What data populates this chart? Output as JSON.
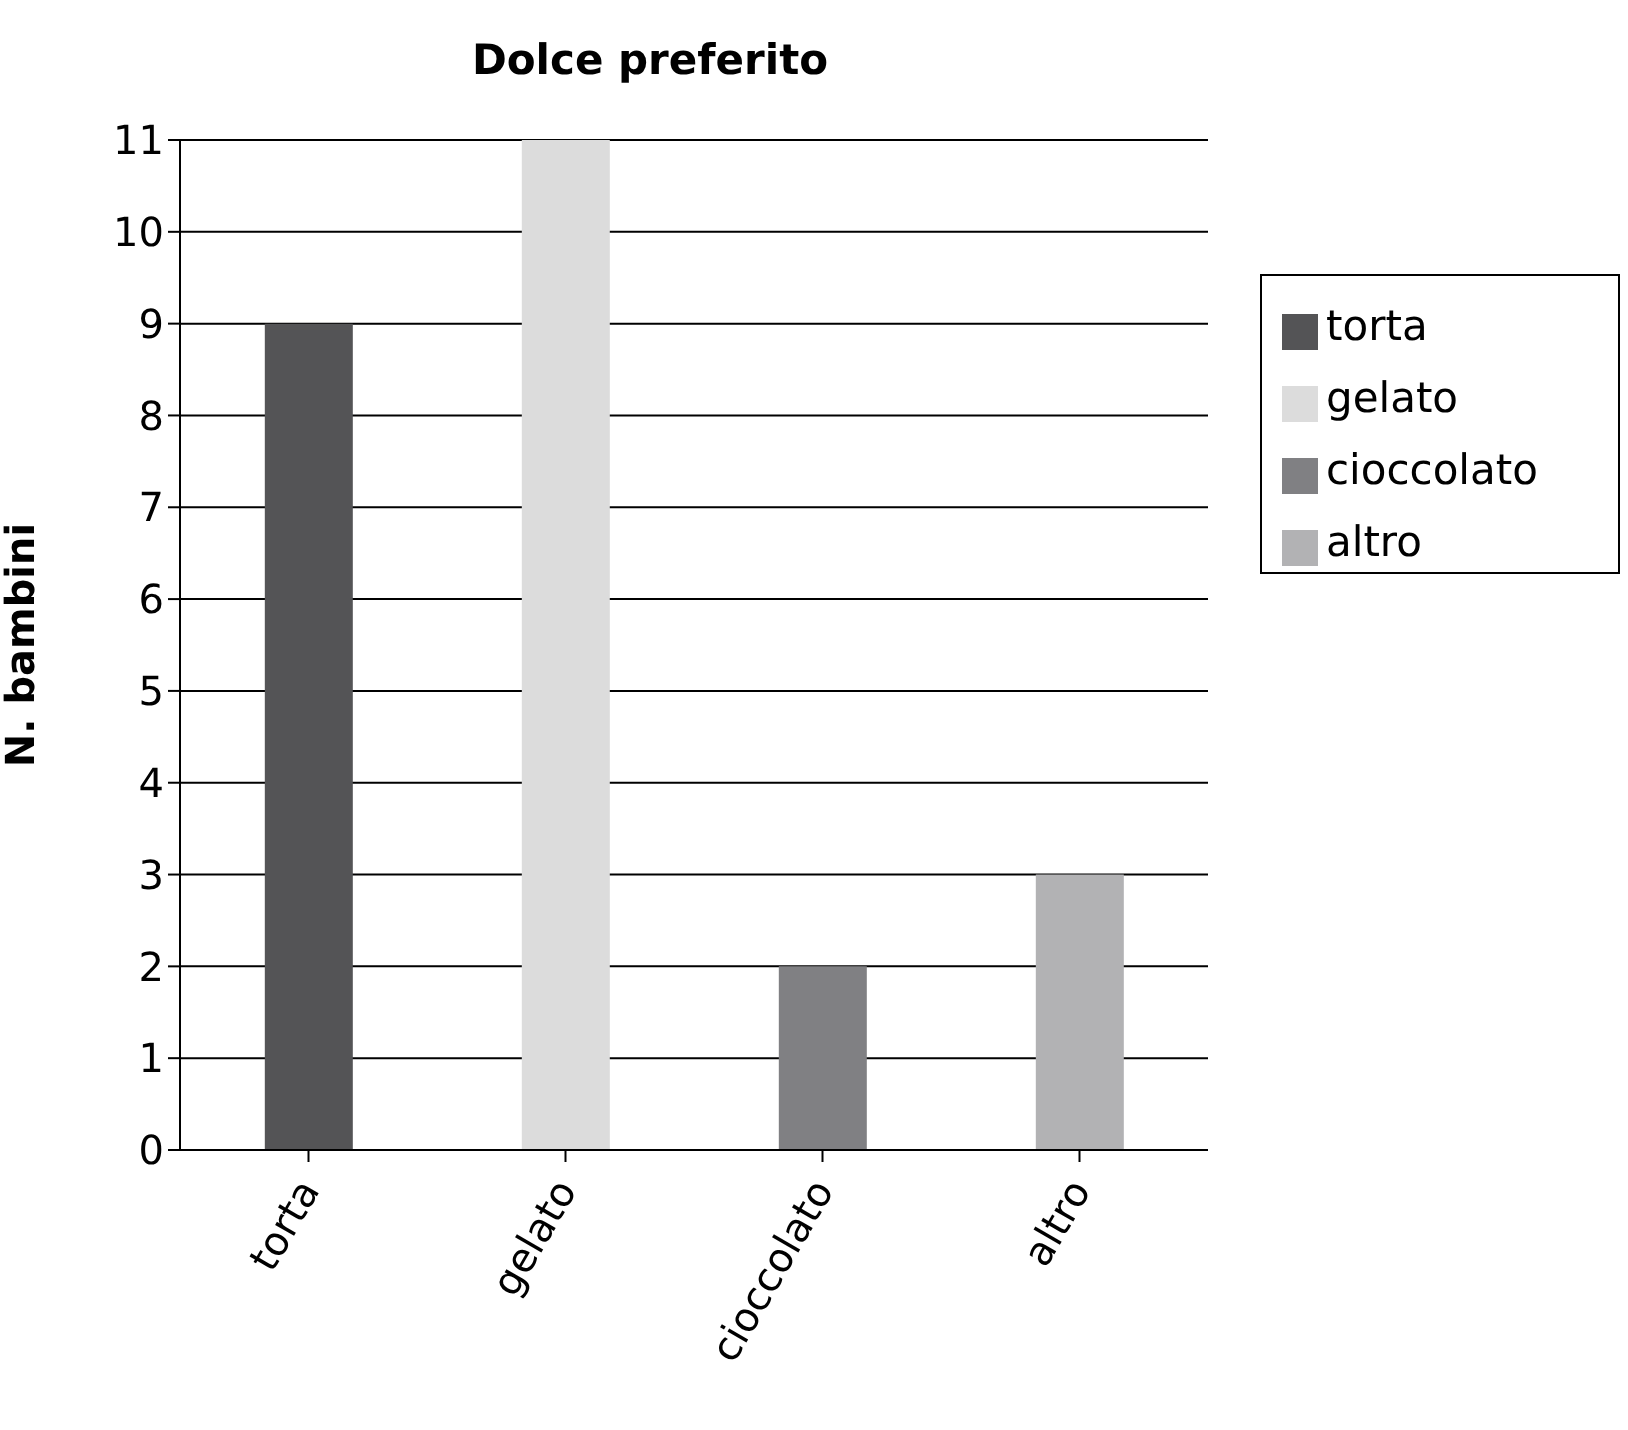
{
  "chart_data": {
    "type": "bar",
    "title": "Dolce preferito",
    "ylabel": "N. bambini",
    "categories": [
      "torta",
      "gelato",
      "cioccolato",
      "altro"
    ],
    "series": [
      {
        "name": "torta",
        "color": "#545456",
        "values": [
          9,
          null,
          null,
          null
        ]
      },
      {
        "name": "gelato",
        "color": "#dcdcdc",
        "values": [
          null,
          11,
          null,
          null
        ]
      },
      {
        "name": "cioccolato",
        "color": "#808083",
        "values": [
          null,
          null,
          2,
          null
        ]
      },
      {
        "name": "altro",
        "color": "#b2b2b4",
        "values": [
          null,
          null,
          null,
          3
        ]
      }
    ],
    "ylim": [
      0,
      11
    ],
    "yticks": [
      0,
      1,
      2,
      3,
      4,
      5,
      6,
      7,
      8,
      9,
      10,
      11
    ],
    "grid": "y",
    "legend": "right"
  }
}
